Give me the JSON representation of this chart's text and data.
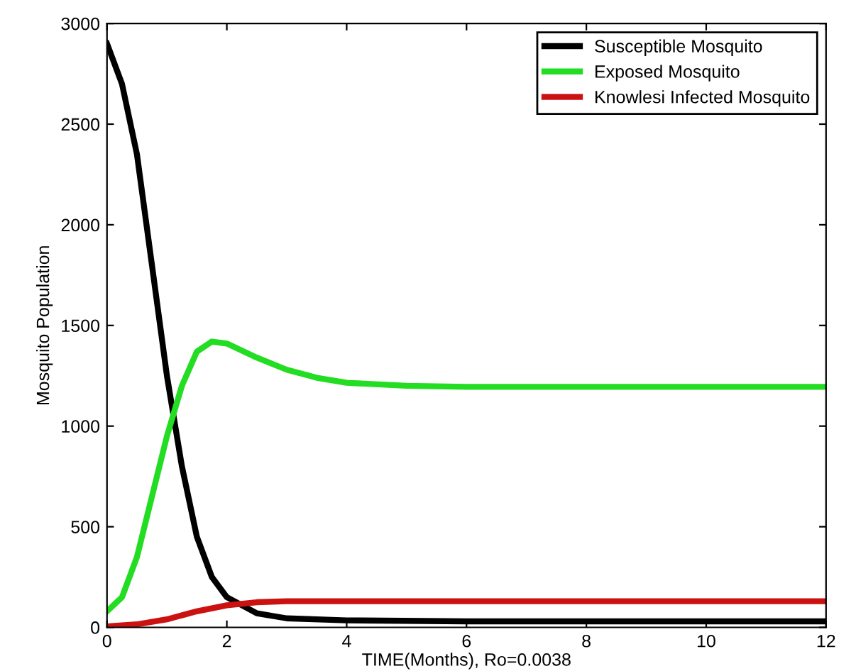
{
  "chart_data": {
    "type": "line",
    "xlabel": "TIME(Months), Ro=0.0038",
    "ylabel": "Mosquito Population",
    "xlim": [
      0,
      12
    ],
    "ylim": [
      0,
      3000
    ],
    "xticks": [
      0,
      2,
      4,
      6,
      8,
      10,
      12
    ],
    "yticks": [
      0,
      500,
      1000,
      1500,
      2000,
      2500,
      3000
    ],
    "grid": false,
    "legend": "top right",
    "line_style": "solid",
    "series": [
      {
        "name": "Susceptible Mosquito",
        "color": "#000000",
        "x": [
          0,
          0.25,
          0.5,
          0.75,
          1,
          1.25,
          1.5,
          1.75,
          2,
          2.5,
          3,
          4,
          6,
          12
        ],
        "values": [
          2900,
          2700,
          2350,
          1800,
          1250,
          800,
          450,
          250,
          150,
          70,
          45,
          35,
          30,
          30
        ]
      },
      {
        "name": "Exposed Mosquito",
        "color": "#22dd22",
        "x": [
          0,
          0.25,
          0.5,
          0.75,
          1,
          1.25,
          1.5,
          1.75,
          2,
          2.5,
          3,
          3.5,
          4,
          5,
          6,
          12
        ],
        "values": [
          80,
          150,
          350,
          650,
          950,
          1200,
          1370,
          1420,
          1410,
          1340,
          1280,
          1240,
          1215,
          1200,
          1195,
          1195
        ]
      },
      {
        "name": "Knowlesi Infected Mosquito",
        "color": "#cc1111",
        "x": [
          0,
          0.5,
          1,
          1.5,
          2,
          2.5,
          3,
          4,
          12
        ],
        "values": [
          5,
          15,
          40,
          80,
          110,
          125,
          130,
          130,
          130
        ]
      }
    ]
  }
}
